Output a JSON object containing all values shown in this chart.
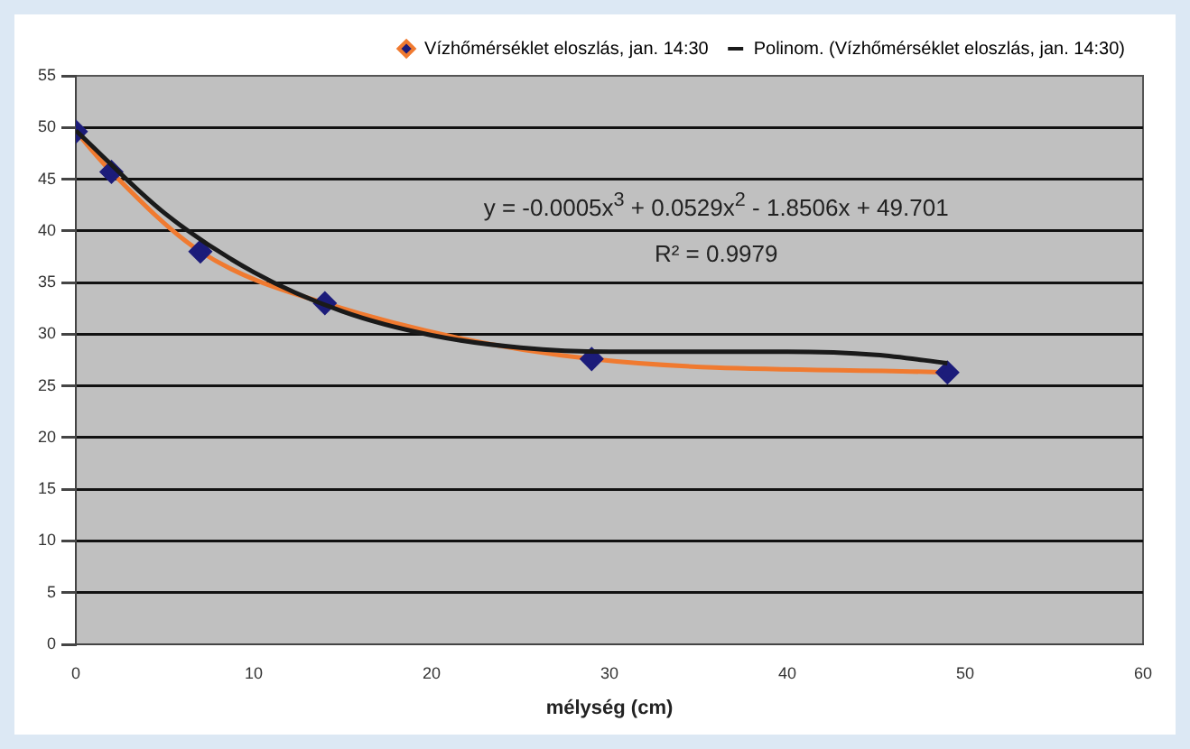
{
  "chart_data": {
    "type": "line",
    "xlabel": "mélység (cm)",
    "annotations": [
      "y = -0.0005x$^{3}$ + 0.0529x$^{2}$ - 1.8506x + 49.701",
      "R² = 0.9979"
    ],
    "x": [
      0,
      2,
      7,
      14,
      29,
      49
    ],
    "series": [
      {
        "name": "Vízhőmérséklet eloszlás, jan. 14:30",
        "color": "#f07a30",
        "values": [
          49.6,
          45.7,
          38.0,
          33.0,
          27.6,
          26.3
        ],
        "marker": "diamond",
        "colors": [
          "#1c1c7a",
          "#1c1c7a",
          "#1c1c7a",
          "#1c1c7a",
          "#1c1c7a",
          "#1c1c7a"
        ]
      },
      {
        "name": "Polinom. (Vízhőmérséklet eloszlás, jan. 14:30)",
        "color": "#1a1a1a",
        "type": "line",
        "marker": "none",
        "x": [
          0,
          5,
          10,
          15,
          20,
          25,
          30,
          35,
          40,
          45,
          49
        ],
        "values": [
          49.7,
          41.7,
          36.0,
          32.2,
          29.9,
          28.7,
          28.3,
          28.3,
          28.3,
          28.0,
          27.2
        ]
      }
    ],
    "xlim": [
      0,
      60
    ],
    "xticks": [
      0,
      10,
      20,
      30,
      40,
      50,
      60
    ],
    "ylim": [
      0,
      55
    ],
    "yticks": [
      0,
      5,
      10,
      15,
      20,
      25,
      30,
      35,
      40,
      45,
      50,
      55
    ],
    "grid": "y",
    "legend": "top right"
  }
}
